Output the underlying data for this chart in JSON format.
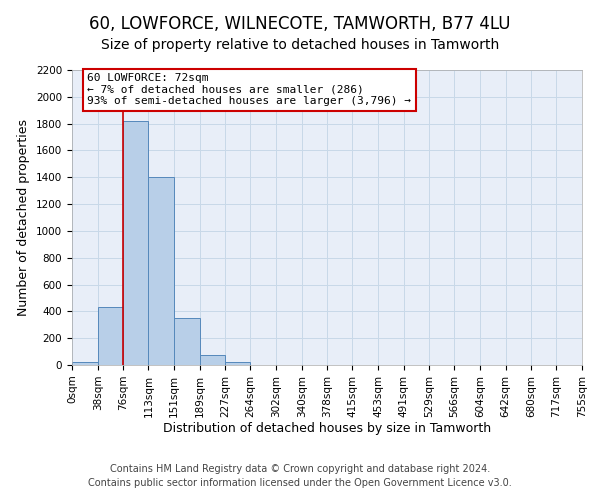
{
  "title": "60, LOWFORCE, WILNECOTE, TAMWORTH, B77 4LU",
  "subtitle": "Size of property relative to detached houses in Tamworth",
  "xlabel": "Distribution of detached houses by size in Tamworth",
  "ylabel": "Number of detached properties",
  "bar_edges": [
    0,
    38,
    76,
    113,
    151,
    189,
    227,
    264,
    302,
    340,
    378,
    415,
    453,
    491,
    529,
    566,
    604,
    642,
    680,
    717,
    755
  ],
  "bar_heights": [
    20,
    430,
    1820,
    1400,
    350,
    75,
    20,
    0,
    0,
    0,
    0,
    0,
    0,
    0,
    0,
    0,
    0,
    0,
    0,
    0
  ],
  "bar_color": "#b8cfe8",
  "bar_edge_color": "#5588bb",
  "vline_x": 76,
  "vline_color": "#cc0000",
  "ylim": [
    0,
    2200
  ],
  "yticks": [
    0,
    200,
    400,
    600,
    800,
    1000,
    1200,
    1400,
    1600,
    1800,
    2000,
    2200
  ],
  "xtick_labels": [
    "0sqm",
    "38sqm",
    "76sqm",
    "113sqm",
    "151sqm",
    "189sqm",
    "227sqm",
    "264sqm",
    "302sqm",
    "340sqm",
    "378sqm",
    "415sqm",
    "453sqm",
    "491sqm",
    "529sqm",
    "566sqm",
    "604sqm",
    "642sqm",
    "680sqm",
    "717sqm",
    "755sqm"
  ],
  "annotation_title": "60 LOWFORCE: 72sqm",
  "annotation_line1": "← 7% of detached houses are smaller (286)",
  "annotation_line2": "93% of semi-detached houses are larger (3,796) →",
  "annotation_box_facecolor": "#ffffff",
  "annotation_box_edgecolor": "#cc0000",
  "footer_line1": "Contains HM Land Registry data © Crown copyright and database right 2024.",
  "footer_line2": "Contains public sector information licensed under the Open Government Licence v3.0.",
  "background_color": "#ffffff",
  "plot_bg_color": "#e8eef8",
  "grid_color": "#c8d8e8",
  "title_fontsize": 12,
  "subtitle_fontsize": 10,
  "axis_label_fontsize": 9,
  "tick_fontsize": 7.5,
  "annotation_fontsize": 8,
  "footer_fontsize": 7
}
